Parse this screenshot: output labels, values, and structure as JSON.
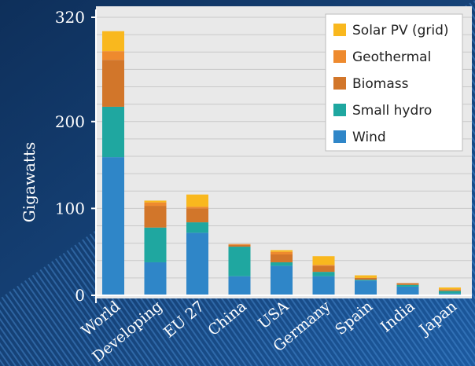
{
  "chart_data": {
    "type": "bar",
    "stacked": true,
    "title": "",
    "xlabel": "",
    "ylabel": "Gigawatts",
    "ylim": [
      0,
      320
    ],
    "yticks": [
      0,
      100,
      200,
      320
    ],
    "grid": true,
    "legend_position": "top-right",
    "categories": [
      "World",
      "Developing",
      "EU 27",
      "China",
      "USA",
      "Germany",
      "Spain",
      "India",
      "Japan"
    ],
    "series": [
      {
        "name": "Wind",
        "color": "#2f86c8",
        "values": [
          159,
          38,
          72,
          22,
          34,
          22,
          17,
          10,
          2
        ]
      },
      {
        "name": "Small hydro",
        "color": "#1fa7a0",
        "values": [
          58,
          40,
          12,
          34,
          4,
          5,
          1,
          2,
          3
        ]
      },
      {
        "name": "Biomass",
        "color": "#d2762a",
        "values": [
          54,
          25,
          16,
          2,
          9,
          7,
          2,
          2,
          1
        ]
      },
      {
        "name": "Geothermal",
        "color": "#ee8a2e",
        "values": [
          10,
          4,
          2,
          1,
          3,
          1,
          0,
          0,
          1
        ]
      },
      {
        "name": "Solar PV (grid)",
        "color": "#f9b81e",
        "values": [
          23,
          2,
          14,
          0,
          2,
          10,
          3,
          0,
          2
        ]
      }
    ]
  }
}
